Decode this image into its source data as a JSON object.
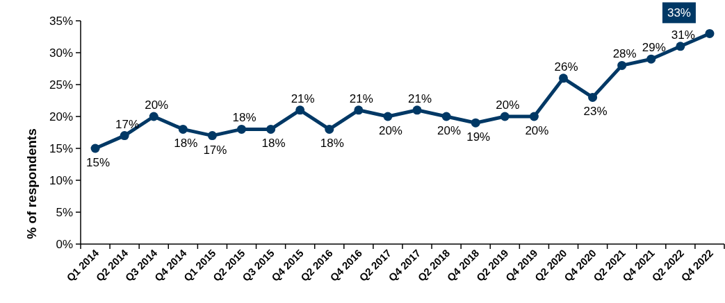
{
  "chart_data": {
    "type": "line",
    "ylabel": "% of respondents",
    "categories": [
      "Q1 2014",
      "Q2 2014",
      "Q3 2014",
      "Q4 2014",
      "Q1 2015",
      "Q2 2015",
      "Q3 2015",
      "Q4 2015",
      "Q2 2016",
      "Q4 2016",
      "Q2 2017",
      "Q4 2017",
      "Q2 2018",
      "Q4 2018",
      "Q2 2019",
      "Q4 2019",
      "Q2 2020",
      "Q4 2020",
      "Q2 2021",
      "Q4 2021",
      "Q2 2022",
      "Q4 2022"
    ],
    "series": [
      {
        "color": "#003865",
        "values": [
          15,
          17,
          20,
          18,
          17,
          18,
          18,
          21,
          18,
          21,
          20,
          21,
          20,
          19,
          20,
          20,
          26,
          23,
          28,
          29,
          31,
          33
        ],
        "value_labels": [
          "15%",
          "17%",
          "20%",
          "18%",
          "17%",
          "18%",
          "18%",
          "21%",
          "18%",
          "21%",
          "20%",
          "21%",
          "20%",
          "19%",
          "20%",
          "20%",
          "26%",
          "23%",
          "28%",
          "29%",
          "31%",
          "33%"
        ]
      }
    ],
    "ylim": [
      0,
      35
    ],
    "yticks": [
      {
        "value": 0,
        "label": "0%"
      },
      {
        "value": 5,
        "label": "5%"
      },
      {
        "value": 10,
        "label": "10%"
      },
      {
        "value": 15,
        "label": "15%"
      },
      {
        "value": 20,
        "label": "20%"
      },
      {
        "value": 25,
        "label": "25%"
      },
      {
        "value": 30,
        "label": "30%"
      },
      {
        "value": 35,
        "label": "35%"
      }
    ],
    "marker": "circle",
    "line_style": "solid"
  }
}
